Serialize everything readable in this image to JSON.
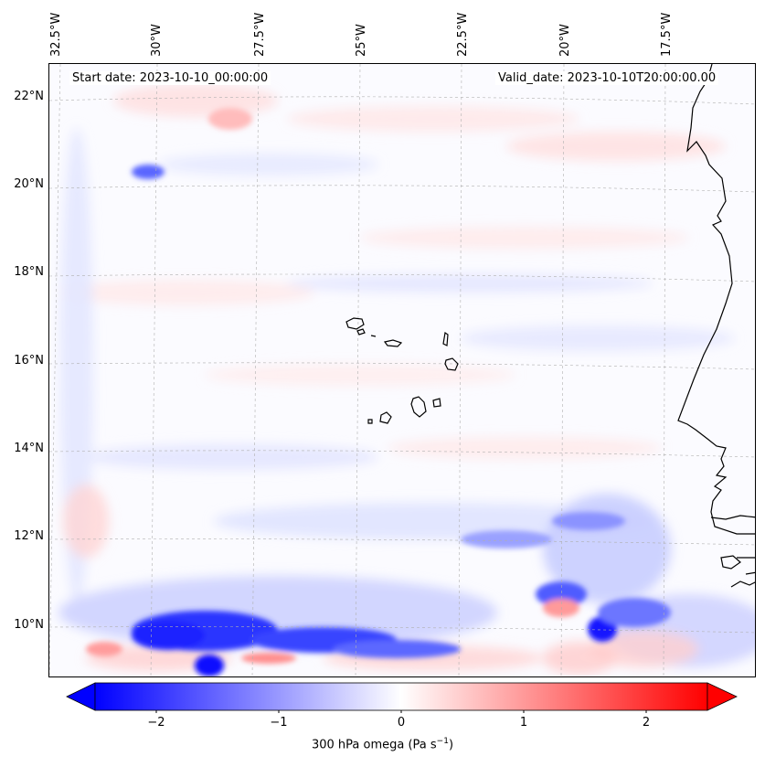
{
  "header": {
    "start_date": "Start date: 2023-10-10_00:00:00",
    "valid_date": "Valid_date: 2023-10-10T20:00:00.00"
  },
  "longitude_labels": [
    "32.5°W",
    "30°W",
    "27.5°W",
    "25°W",
    "22.5°W",
    "20°W",
    "17.5°W"
  ],
  "latitude_labels": [
    "22°N",
    "20°N",
    "18°N",
    "16°N",
    "14°N",
    "12°N",
    "10°N"
  ],
  "colorbar": {
    "title": "300 hPa omega (Pa s",
    "title_exponent": "−1",
    "title_suffix": ")",
    "ticks": [
      "−2",
      "−1",
      "0",
      "1",
      "2"
    ],
    "min": -2.5,
    "max": 2.5,
    "low_color": "#0000ff",
    "high_color": "#ff0000"
  },
  "colors": {
    "coastline": "#000000",
    "gridline": "#b0b0b0"
  }
}
